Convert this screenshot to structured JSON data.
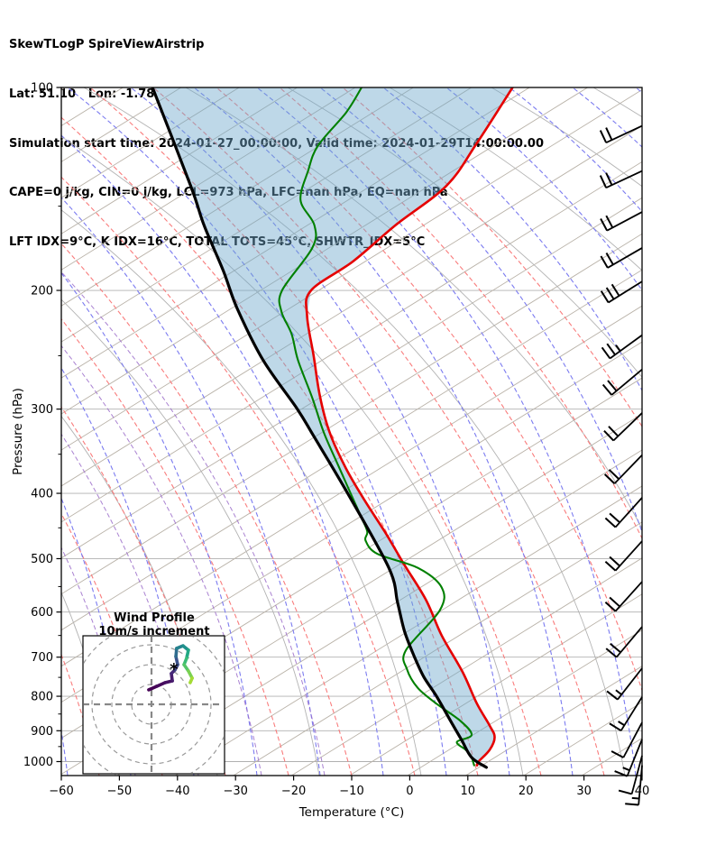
{
  "header": {
    "lines": [
      "SkewTLogP SpireViewAirstrip",
      "Lat: 51.10   Lon: -1.78",
      "Simulation start time: 2024-01-27_00:00:00, Valid time: 2024-01-29T14:00:00.00",
      "CAPE=0 j/kg, CIN=0 j/kg, LCL=973 hPa, LFC=nan hPa, EQ=nan hPa",
      "LFT IDX=9°C, K IDX=16°C, TOTAL TOTS=45°C, SHWTR_IDX=5°C"
    ]
  },
  "chart_data": {
    "type": "line",
    "variant": "skewt-logp",
    "xlabel": "Temperature (°C)",
    "ylabel": "Pressure (hPa)",
    "xlim": [
      -60,
      40
    ],
    "ylim": [
      100,
      1050
    ],
    "x_ticks": [
      -60,
      -50,
      -40,
      -30,
      -20,
      -10,
      0,
      10,
      20,
      30,
      40
    ],
    "x_tick_labels": [
      "−60",
      "−50",
      "−40",
      "−30",
      "−20",
      "−10",
      "0",
      "10",
      "20",
      "30",
      "40"
    ],
    "y_ticks": [
      100,
      200,
      300,
      400,
      500,
      600,
      700,
      800,
      900,
      1000
    ],
    "y_minor_ticks": [
      150,
      250,
      350,
      450,
      550,
      650,
      750,
      850,
      950
    ],
    "grid_pressures": [
      200,
      300,
      400,
      500,
      600,
      700,
      800,
      900,
      1000
    ],
    "series": [
      {
        "name": "temperature",
        "color": "#e50000",
        "width": 2.6,
        "pressure": [
          100,
          121,
          140,
          160,
          181,
          200,
          218,
          250,
          287,
          325,
          367,
          410,
          456,
          509,
          575,
          650,
          737,
          820,
          885,
          920,
          960,
          1000,
          1013
        ],
        "temp": [
          -83,
          -81,
          -80,
          -83,
          -85,
          -88,
          -85,
          -78,
          -71,
          -64,
          -56,
          -48,
          -40,
          -32,
          -23,
          -15,
          -6,
          1,
          6.5,
          9,
          10,
          9.8,
          10.1
        ]
      },
      {
        "name": "dewpoint",
        "color": "#008000",
        "width": 2.1,
        "pressure": [
          100,
          109,
          122,
          133,
          147,
          160,
          173,
          200,
          215,
          232,
          254,
          289,
          325,
          362,
          403,
          435,
          456,
          470,
          492,
          516,
          552,
          597,
          684,
          730,
          777,
          820,
          870,
          913,
          935,
          960,
          980,
          1013
        ],
        "temp": [
          -109,
          -108,
          -108,
          -106,
          -103,
          -97,
          -94,
          -93,
          -90,
          -85,
          -80,
          -72,
          -65,
          -58,
          -51,
          -46,
          -43,
          -42,
          -38,
          -29,
          -22,
          -19,
          -19,
          -16,
          -11.5,
          -6,
          0.7,
          4.7,
          3.2,
          5.8,
          7.6,
          9.6
        ]
      },
      {
        "name": "parcel",
        "color": "#000000",
        "width": 3.2,
        "pressure": [
          100,
          140,
          160,
          187,
          213,
          254,
          300,
          330,
          400,
          516,
          580,
          641,
          700,
          749,
          800,
          870,
          930,
          986,
          1020
        ],
        "temp": [
          -145,
          -124,
          -116,
          -106,
          -98,
          -86,
          -73,
          -66,
          -52,
          -34,
          -27.5,
          -22,
          -16.5,
          -12,
          -7,
          -1,
          3.8,
          8,
          12
        ]
      }
    ],
    "shading": {
      "between": [
        "parcel",
        "temperature"
      ],
      "color": "#6fa8cc",
      "opacity": 0.45
    },
    "wind_barbs": [
      {
        "p": 114,
        "speed_ms": 20,
        "full": 2,
        "half": 0,
        "angle": 25
      },
      {
        "p": 133,
        "speed_ms": 20,
        "full": 2,
        "half": 0,
        "angle": 25
      },
      {
        "p": 153,
        "speed_ms": 20,
        "full": 2,
        "half": 0,
        "angle": 28
      },
      {
        "p": 173,
        "speed_ms": 20,
        "full": 2,
        "half": 0,
        "angle": 30
      },
      {
        "p": 194,
        "speed_ms": 30,
        "full": 3,
        "half": 0,
        "angle": 32
      },
      {
        "p": 233,
        "speed_ms": 25,
        "full": 2,
        "half": 1,
        "angle": 36
      },
      {
        "p": 262,
        "speed_ms": 20,
        "full": 2,
        "half": 0,
        "angle": 40
      },
      {
        "p": 304,
        "speed_ms": 20,
        "full": 2,
        "half": 0,
        "angle": 44
      },
      {
        "p": 351,
        "speed_ms": 20,
        "full": 2,
        "half": 0,
        "angle": 46
      },
      {
        "p": 406,
        "speed_ms": 20,
        "full": 2,
        "half": 0,
        "angle": 48
      },
      {
        "p": 471,
        "speed_ms": 20,
        "full": 2,
        "half": 0,
        "angle": 48
      },
      {
        "p": 541,
        "speed_ms": 20,
        "full": 2,
        "half": 0,
        "angle": 48
      },
      {
        "p": 631,
        "speed_ms": 20,
        "full": 2,
        "half": 0,
        "angle": 50
      },
      {
        "p": 727,
        "speed_ms": 15,
        "full": 1,
        "half": 1,
        "angle": 52
      },
      {
        "p": 802,
        "speed_ms": 15,
        "full": 1,
        "half": 1,
        "angle": 58
      },
      {
        "p": 875,
        "speed_ms": 10,
        "full": 1,
        "half": 0,
        "angle": 62
      },
      {
        "p": 927,
        "speed_ms": 15,
        "full": 1,
        "half": 1,
        "angle": 68
      },
      {
        "p": 980,
        "speed_ms": 10,
        "full": 1,
        "half": 0,
        "angle": 75
      },
      {
        "p": 1013,
        "speed_ms": 15,
        "full": 1,
        "half": 1,
        "angle": 85
      }
    ],
    "hodograph": {
      "title_lines": [
        "Wind Profile",
        "10m/s increment"
      ],
      "ring_increment_ms": 10,
      "rings_ms": [
        10,
        20,
        30,
        40
      ],
      "trace_u": [
        -1.4,
        2.7,
        6.8,
        10.5,
        10.0,
        11.8,
        13.2,
        12.3,
        12.7,
        15.9,
        18.6,
        17.7,
        16.4,
        18.6,
        20.5,
        19.5
      ],
      "trace_v": [
        7.3,
        9.1,
        10.9,
        11.8,
        15.5,
        17.3,
        20.0,
        24.1,
        28.2,
        29.5,
        27.3,
        23.2,
        20.0,
        16.8,
        13.2,
        10.9
      ],
      "marker": {
        "u": 11.4,
        "v": 17.7,
        "color": "#2a9d8f",
        "glyph": "*"
      },
      "trace_colors": [
        "#440154",
        "#46085c",
        "#471063",
        "#481d6f",
        "#472a7a",
        "#414487",
        "#3b528b",
        "#2f6c8e",
        "#26828e",
        "#21918c",
        "#22a884",
        "#3abc76",
        "#54c568",
        "#7ad151",
        "#a5db36",
        "#fde725"
      ]
    },
    "grid_colors": {
      "pressure_line": "#b0b0b0",
      "isotherm": "#b9b2a8",
      "dry_adiabat": "#b3b3b3",
      "red_dashed": "#f97c7c",
      "blue_dashed": "#7b7bf0",
      "violet_dashed": "#9a6bc9"
    }
  }
}
